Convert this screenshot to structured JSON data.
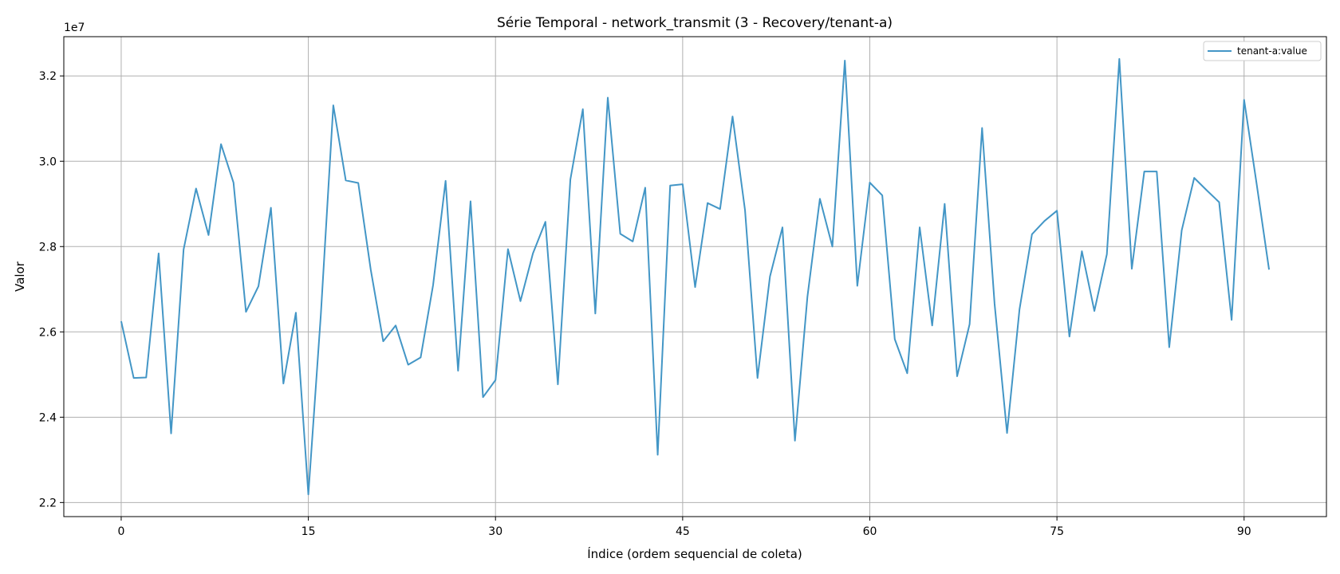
{
  "chart_data": {
    "type": "line",
    "title": "Série Temporal - network_transmit (3 - Recovery/tenant-a)",
    "xlabel": "Índice (ordem sequencial de coleta)",
    "ylabel": "Valor",
    "y_offset_label": "1e7",
    "xlim": [
      -4.6,
      96.6
    ],
    "ylim": [
      2.167,
      3.292
    ],
    "x_ticks": [
      0,
      15,
      30,
      45,
      60,
      75,
      90
    ],
    "x_tick_labels": [
      "0",
      "15",
      "30",
      "45",
      "60",
      "75",
      "90"
    ],
    "y_ticks": [
      2.2,
      2.4,
      2.6,
      2.8,
      3.0,
      3.2
    ],
    "y_tick_labels": [
      "2.2",
      "2.4",
      "2.6",
      "2.8",
      "3.0",
      "3.2"
    ],
    "grid": true,
    "legend_position": "top-right",
    "series": [
      {
        "name": "tenant-a:value",
        "color": "#4396c6",
        "x": [
          0,
          1,
          2,
          3,
          4,
          5,
          6,
          7,
          8,
          9,
          10,
          11,
          12,
          13,
          14,
          15,
          16,
          17,
          18,
          19,
          20,
          21,
          22,
          23,
          24,
          25,
          26,
          27,
          28,
          29,
          30,
          31,
          32,
          33,
          34,
          35,
          36,
          37,
          38,
          39,
          40,
          41,
          42,
          43,
          44,
          45,
          46,
          47,
          48,
          49,
          50,
          51,
          52,
          53,
          54,
          55,
          56,
          57,
          58,
          59,
          60,
          61,
          62,
          63,
          64,
          65,
          66,
          67,
          68,
          69,
          70,
          71,
          72,
          73,
          74,
          75,
          76,
          77,
          78,
          79,
          80,
          81,
          82,
          83,
          84,
          85,
          86,
          87,
          88,
          89,
          90,
          91,
          92
        ],
        "values": [
          2.625,
          2.492,
          2.493,
          2.784,
          2.362,
          2.793,
          2.936,
          2.827,
          3.04,
          2.95,
          2.647,
          2.707,
          2.891,
          2.479,
          2.645,
          2.219,
          2.64,
          3.131,
          2.955,
          2.949,
          2.746,
          2.578,
          2.615,
          2.523,
          2.54,
          2.71,
          2.954,
          2.509,
          2.906,
          2.447,
          2.487,
          2.794,
          2.672,
          2.784,
          2.858,
          2.477,
          2.957,
          3.122,
          2.643,
          3.149,
          2.83,
          2.812,
          2.938,
          2.312,
          2.943,
          2.946,
          2.705,
          2.902,
          2.888,
          3.105,
          2.885,
          2.492,
          2.73,
          2.845,
          2.345,
          2.682,
          2.912,
          2.8,
          3.236,
          2.708,
          2.95,
          2.92,
          2.583,
          2.503,
          2.845,
          2.615,
          2.9,
          2.496,
          2.618,
          3.078,
          2.666,
          2.363,
          2.653,
          2.829,
          2.86,
          2.884,
          2.589,
          2.789,
          2.649,
          2.782,
          3.24,
          2.748,
          2.976,
          2.976,
          2.564,
          2.838,
          2.961,
          2.932,
          2.904,
          2.628,
          3.144,
          2.948,
          2.746
        ]
      }
    ]
  }
}
